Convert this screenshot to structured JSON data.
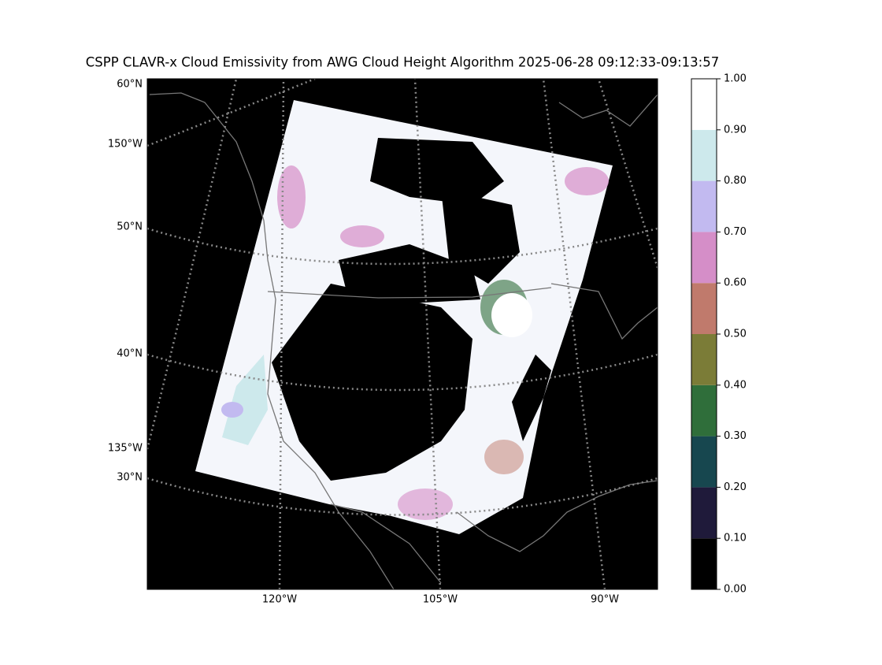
{
  "title": "CSPP CLAVR-x Cloud Emissivity from AWG Cloud Height Algorithm 2025-06-28 09:12:33-09:13:57",
  "map_labels": {
    "left": [
      "60°N",
      "150°W",
      "50°N",
      "40°N",
      "135°W",
      "30°N"
    ],
    "bottom": [
      "120°W",
      "105°W",
      "90°W"
    ]
  },
  "colorbar": {
    "ylim": [
      0,
      1
    ],
    "yticks": [
      {
        "value": 0,
        "label": "0.00"
      },
      {
        "value": 0.1,
        "label": "0.10"
      },
      {
        "value": 0.2,
        "label": "0.20"
      },
      {
        "value": 0.3,
        "label": "0.30"
      },
      {
        "value": 0.4,
        "label": "0.40"
      },
      {
        "value": 0.5,
        "label": "0.50"
      },
      {
        "value": 0.6,
        "label": "0.60"
      },
      {
        "value": 0.7,
        "label": "0.70"
      },
      {
        "value": 0.8,
        "label": "0.80"
      },
      {
        "value": 0.9,
        "label": "0.90"
      },
      {
        "value": 1,
        "label": "1.00"
      }
    ],
    "colors": [
      "#000000",
      "#1f1a3a",
      "#17474f",
      "#2f6e3a",
      "#7b7c37",
      "#c07a6c",
      "#d58ec8",
      "#c2baf0",
      "#cde9ec",
      "#ffffff"
    ]
  }
}
